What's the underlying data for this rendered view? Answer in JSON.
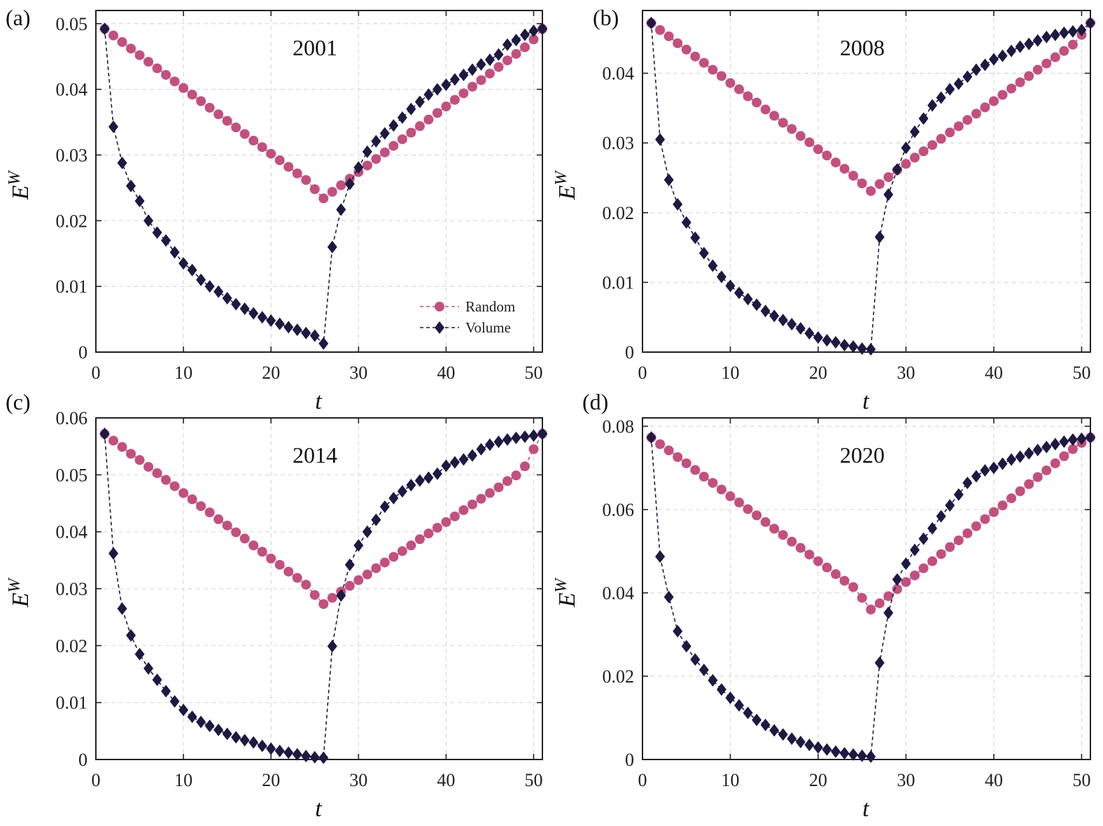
{
  "colors": {
    "random": "#C2507F",
    "volume": "#1C1A42",
    "grid": "#d9d9d9",
    "axis": "#222222"
  },
  "legend": {
    "random": "Random",
    "volume": "Volume",
    "placement": "bottom-right of panel (a)"
  },
  "chart_data": [
    {
      "panel": "(a)",
      "title": "2001",
      "type": "line",
      "xlabel": "t",
      "ylabel_base": "E",
      "ylabel_sup": "W",
      "xlim": [
        0,
        51
      ],
      "ylim": [
        0,
        0.052
      ],
      "xticks": [
        0,
        10,
        20,
        30,
        40,
        50
      ],
      "yticks": [
        0,
        0.01,
        0.02,
        0.03,
        0.04,
        0.05
      ],
      "ytick_labels": [
        "0",
        "0.01",
        "0.02",
        "0.03",
        "0.04",
        "0.05"
      ],
      "xtick_labels": [
        "0",
        "10",
        "20",
        "30",
        "40",
        "50"
      ],
      "x": [
        1,
        2,
        3,
        4,
        5,
        6,
        7,
        8,
        9,
        10,
        11,
        12,
        13,
        14,
        15,
        16,
        17,
        18,
        19,
        20,
        21,
        22,
        23,
        24,
        25,
        26,
        27,
        28,
        29,
        30,
        31,
        32,
        33,
        34,
        35,
        36,
        37,
        38,
        39,
        40,
        41,
        42,
        43,
        44,
        45,
        46,
        47,
        48,
        49,
        50,
        51
      ],
      "series": [
        {
          "name": "Random",
          "marker": "circle",
          "values": [
            0.0492,
            0.0482,
            0.0472,
            0.0462,
            0.0452,
            0.0442,
            0.0432,
            0.0422,
            0.0412,
            0.0402,
            0.0392,
            0.0382,
            0.0372,
            0.0362,
            0.0352,
            0.0342,
            0.0332,
            0.0322,
            0.0312,
            0.0302,
            0.0292,
            0.0282,
            0.0272,
            0.0262,
            0.0248,
            0.0234,
            0.0244,
            0.0254,
            0.0264,
            0.0274,
            0.0284,
            0.0294,
            0.0304,
            0.0314,
            0.0324,
            0.0334,
            0.0344,
            0.0354,
            0.0364,
            0.0374,
            0.0384,
            0.0394,
            0.0404,
            0.0414,
            0.0424,
            0.0434,
            0.0444,
            0.0454,
            0.0464,
            0.0476,
            0.0492
          ]
        },
        {
          "name": "Volume",
          "marker": "diamond",
          "values": [
            0.0492,
            0.0343,
            0.0288,
            0.0253,
            0.023,
            0.02,
            0.0182,
            0.017,
            0.0152,
            0.0135,
            0.0125,
            0.011,
            0.01,
            0.0092,
            0.0082,
            0.0073,
            0.0066,
            0.0059,
            0.0053,
            0.0048,
            0.0043,
            0.0038,
            0.0034,
            0.0029,
            0.0025,
            0.0013,
            0.016,
            0.0217,
            0.0256,
            0.0281,
            0.0305,
            0.0321,
            0.0333,
            0.0345,
            0.0357,
            0.037,
            0.0381,
            0.0392,
            0.04,
            0.0407,
            0.0415,
            0.0422,
            0.043,
            0.0438,
            0.0445,
            0.0453,
            0.0468,
            0.0475,
            0.0483,
            0.0489,
            0.0492
          ]
        }
      ]
    },
    {
      "panel": "(b)",
      "title": "2008",
      "type": "line",
      "xlabel": "t",
      "ylabel_base": "E",
      "ylabel_sup": "W",
      "xlim": [
        0,
        51
      ],
      "ylim": [
        0,
        0.049
      ],
      "xticks": [
        0,
        10,
        20,
        30,
        40,
        50
      ],
      "yticks": [
        0,
        0.01,
        0.02,
        0.03,
        0.04
      ],
      "ytick_labels": [
        "0",
        "0.01",
        "0.02",
        "0.03",
        "0.04"
      ],
      "xtick_labels": [
        "0",
        "10",
        "20",
        "30",
        "40",
        "50"
      ],
      "x": [
        1,
        2,
        3,
        4,
        5,
        6,
        7,
        8,
        9,
        10,
        11,
        12,
        13,
        14,
        15,
        16,
        17,
        18,
        19,
        20,
        21,
        22,
        23,
        24,
        25,
        26,
        27,
        28,
        29,
        30,
        31,
        32,
        33,
        34,
        35,
        36,
        37,
        38,
        39,
        40,
        41,
        42,
        43,
        44,
        45,
        46,
        47,
        48,
        49,
        50,
        51
      ],
      "series": [
        {
          "name": "Random",
          "marker": "circle",
          "values": [
            0.0472,
            0.0462,
            0.0453,
            0.0443,
            0.0434,
            0.0424,
            0.0415,
            0.0405,
            0.0396,
            0.0386,
            0.0377,
            0.0367,
            0.0358,
            0.0348,
            0.0339,
            0.0329,
            0.032,
            0.031,
            0.0301,
            0.0291,
            0.0282,
            0.0272,
            0.0263,
            0.0253,
            0.0242,
            0.0231,
            0.0241,
            0.0251,
            0.0261,
            0.027,
            0.0279,
            0.0288,
            0.0297,
            0.0306,
            0.0315,
            0.0324,
            0.0333,
            0.0342,
            0.0351,
            0.036,
            0.0369,
            0.0378,
            0.0387,
            0.0396,
            0.0405,
            0.0414,
            0.0423,
            0.0432,
            0.0441,
            0.0455,
            0.0472
          ]
        },
        {
          "name": "Volume",
          "marker": "diamond",
          "values": [
            0.0472,
            0.0305,
            0.0247,
            0.0212,
            0.0186,
            0.0164,
            0.0142,
            0.0124,
            0.0108,
            0.0095,
            0.0085,
            0.0076,
            0.0068,
            0.0059,
            0.0052,
            0.0046,
            0.004,
            0.0034,
            0.0027,
            0.0021,
            0.0017,
            0.0014,
            0.001,
            0.0008,
            0.0005,
            0.0004,
            0.0165,
            0.0226,
            0.0262,
            0.0293,
            0.0316,
            0.0335,
            0.0354,
            0.0365,
            0.0377,
            0.0385,
            0.0395,
            0.0405,
            0.0412,
            0.042,
            0.0425,
            0.0432,
            0.0438,
            0.0442,
            0.0447,
            0.0452,
            0.0455,
            0.0458,
            0.046,
            0.0462,
            0.0472
          ]
        }
      ]
    },
    {
      "panel": "(c)",
      "title": "2014",
      "type": "line",
      "xlabel": "t",
      "ylabel_base": "E",
      "ylabel_sup": "W",
      "xlim": [
        0,
        51
      ],
      "ylim": [
        0,
        0.06
      ],
      "xticks": [
        0,
        10,
        20,
        30,
        40,
        50
      ],
      "yticks": [
        0,
        0.01,
        0.02,
        0.03,
        0.04,
        0.05,
        0.06
      ],
      "ytick_labels": [
        "0",
        "0.01",
        "0.02",
        "0.03",
        "0.04",
        "0.05",
        "0.06"
      ],
      "xtick_labels": [
        "0",
        "10",
        "20",
        "30",
        "40",
        "50"
      ],
      "x": [
        1,
        2,
        3,
        4,
        5,
        6,
        7,
        8,
        9,
        10,
        11,
        12,
        13,
        14,
        15,
        16,
        17,
        18,
        19,
        20,
        21,
        22,
        23,
        24,
        25,
        26,
        27,
        28,
        29,
        30,
        31,
        32,
        33,
        34,
        35,
        36,
        37,
        38,
        39,
        40,
        41,
        42,
        43,
        44,
        45,
        46,
        47,
        48,
        49,
        50,
        51
      ],
      "series": [
        {
          "name": "Random",
          "marker": "circle",
          "values": [
            0.0572,
            0.056,
            0.0549,
            0.0537,
            0.0526,
            0.0514,
            0.0503,
            0.0491,
            0.048,
            0.0468,
            0.0457,
            0.0445,
            0.0434,
            0.0422,
            0.0411,
            0.0399,
            0.0388,
            0.0376,
            0.0365,
            0.0353,
            0.0342,
            0.033,
            0.0319,
            0.0307,
            0.0289,
            0.0273,
            0.0284,
            0.0295,
            0.0305,
            0.0315,
            0.0325,
            0.0336,
            0.0346,
            0.0356,
            0.0366,
            0.0376,
            0.0387,
            0.0397,
            0.0407,
            0.0417,
            0.0427,
            0.0438,
            0.0448,
            0.0458,
            0.0468,
            0.0478,
            0.0489,
            0.0499,
            0.0515,
            0.0545,
            0.0572
          ]
        },
        {
          "name": "Volume",
          "marker": "diamond",
          "values": [
            0.0572,
            0.0362,
            0.0265,
            0.0218,
            0.0185,
            0.016,
            0.014,
            0.012,
            0.0102,
            0.0087,
            0.0075,
            0.0066,
            0.0059,
            0.0052,
            0.0045,
            0.0039,
            0.0034,
            0.003,
            0.0024,
            0.0019,
            0.0015,
            0.0012,
            0.0009,
            0.0006,
            0.0004,
            0.0003,
            0.0199,
            0.0288,
            0.0342,
            0.0376,
            0.04,
            0.0421,
            0.0444,
            0.0459,
            0.0471,
            0.0482,
            0.049,
            0.0495,
            0.0502,
            0.0516,
            0.0522,
            0.0527,
            0.0534,
            0.0545,
            0.0553,
            0.0558,
            0.0562,
            0.0565,
            0.0567,
            0.0569,
            0.0572
          ]
        }
      ]
    },
    {
      "panel": "(d)",
      "title": "2020",
      "type": "line",
      "xlabel": "t",
      "ylabel_base": "E",
      "ylabel_sup": "W",
      "xlim": [
        0,
        51
      ],
      "ylim": [
        0,
        0.082
      ],
      "xticks": [
        0,
        10,
        20,
        30,
        40,
        50
      ],
      "yticks": [
        0,
        0.02,
        0.04,
        0.06,
        0.08
      ],
      "ytick_labels": [
        "0",
        "0.02",
        "0.04",
        "0.06",
        "0.08"
      ],
      "xtick_labels": [
        "0",
        "10",
        "20",
        "30",
        "40",
        "50"
      ],
      "x": [
        1,
        2,
        3,
        4,
        5,
        6,
        7,
        8,
        9,
        10,
        11,
        12,
        13,
        14,
        15,
        16,
        17,
        18,
        19,
        20,
        21,
        22,
        23,
        24,
        25,
        26,
        27,
        28,
        29,
        30,
        31,
        32,
        33,
        34,
        35,
        36,
        37,
        38,
        39,
        40,
        41,
        42,
        43,
        44,
        45,
        46,
        47,
        48,
        49,
        50,
        51
      ],
      "series": [
        {
          "name": "Random",
          "marker": "circle",
          "values": [
            0.0773,
            0.0757,
            0.0742,
            0.0726,
            0.0711,
            0.0695,
            0.0679,
            0.0664,
            0.0648,
            0.0632,
            0.0617,
            0.0601,
            0.0586,
            0.057,
            0.0554,
            0.0539,
            0.0523,
            0.0508,
            0.0492,
            0.0476,
            0.0461,
            0.0445,
            0.0429,
            0.0414,
            0.0388,
            0.036,
            0.0375,
            0.0392,
            0.0409,
            0.0426,
            0.0442,
            0.0459,
            0.0476,
            0.0493,
            0.051,
            0.0526,
            0.0543,
            0.056,
            0.0577,
            0.0594,
            0.061,
            0.0627,
            0.0644,
            0.0661,
            0.0678,
            0.0694,
            0.0711,
            0.0728,
            0.0745,
            0.076,
            0.0773
          ]
        },
        {
          "name": "Volume",
          "marker": "diamond",
          "values": [
            0.0773,
            0.0487,
            0.039,
            0.0308,
            0.0272,
            0.024,
            0.0215,
            0.019,
            0.0168,
            0.0148,
            0.013,
            0.0112,
            0.0095,
            0.0083,
            0.007,
            0.006,
            0.005,
            0.0042,
            0.0035,
            0.0029,
            0.0024,
            0.0019,
            0.0015,
            0.0012,
            0.0009,
            0.0007,
            0.0232,
            0.0352,
            0.0432,
            0.047,
            0.0503,
            0.053,
            0.0555,
            0.0584,
            0.061,
            0.0636,
            0.0664,
            0.068,
            0.0694,
            0.07,
            0.071,
            0.072,
            0.0727,
            0.0735,
            0.0743,
            0.075,
            0.0757,
            0.0763,
            0.0768,
            0.077,
            0.0773
          ]
        }
      ]
    }
  ]
}
